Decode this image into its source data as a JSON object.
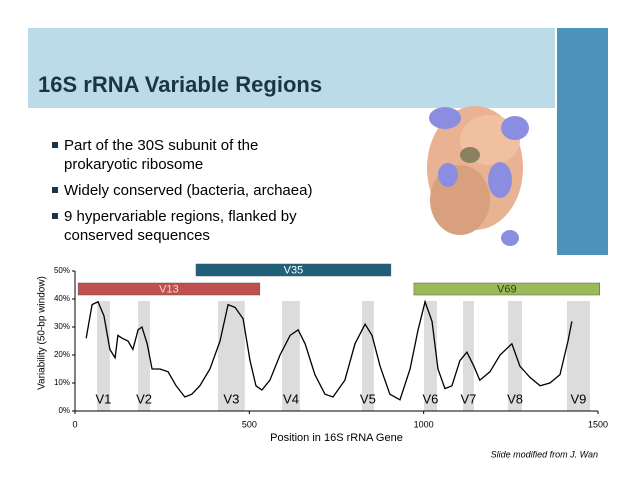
{
  "title": "16S rRNA Variable Regions",
  "bullets": [
    "Part of the 30S subunit of the prokaryotic ribosome",
    "Widely conserved (bacteria, archaea)",
    "9 hypervariable regions, flanked by conserved sequences"
  ],
  "credit": "Slide modified from J. Wan",
  "chart_data": {
    "type": "line",
    "xlabel": "Position in 16S rRNA Gene",
    "ylabel": "Variability (50-bp window)",
    "xlim": [
      0,
      1500
    ],
    "xticks": [
      0,
      500,
      1000,
      1500
    ],
    "ylim": [
      0,
      50
    ],
    "yticks": [
      {
        "value": 0,
        "label": "0%"
      },
      {
        "value": 10,
        "label": "10%"
      },
      {
        "value": 20,
        "label": "20%"
      },
      {
        "value": 30,
        "label": "30%"
      },
      {
        "value": 40,
        "label": "40%"
      },
      {
        "value": 50,
        "label": "50%"
      }
    ],
    "color": "#000000",
    "x": [
      32,
      49,
      66,
      83,
      100,
      115,
      123,
      135,
      152,
      166,
      181,
      192,
      207,
      221,
      244,
      267,
      290,
      315,
      335,
      358,
      387,
      416,
      439,
      459,
      482,
      502,
      519,
      536,
      559,
      588,
      617,
      640,
      660,
      688,
      717,
      740,
      774,
      803,
      832,
      852,
      875,
      903,
      932,
      961,
      984,
      1004,
      1024,
      1041,
      1061,
      1081,
      1104,
      1124,
      1144,
      1161,
      1190,
      1219,
      1253,
      1276,
      1305,
      1334,
      1362,
      1391,
      1414,
      1425
    ],
    "values": [
      26,
      38,
      39,
      34,
      22,
      19,
      27,
      26,
      25,
      22,
      29,
      30,
      24,
      15,
      15,
      14,
      9,
      5,
      6,
      9,
      15,
      25,
      38,
      37,
      33,
      18,
      9,
      7.5,
      11,
      20,
      27,
      29,
      24,
      13,
      6,
      5,
      11,
      24,
      31,
      27,
      16,
      6,
      4,
      15,
      29,
      39,
      32,
      15,
      8,
      9,
      18,
      21,
      16,
      11,
      14,
      20,
      24,
      16,
      12,
      9,
      10,
      13,
      25,
      32
    ],
    "regions": [
      {
        "name": "V1",
        "start": 63,
        "end": 100
      },
      {
        "name": "V2",
        "start": 181,
        "end": 215
      },
      {
        "name": "V3",
        "start": 410,
        "end": 487
      },
      {
        "name": "V4",
        "start": 594,
        "end": 645
      },
      {
        "name": "V5",
        "start": 823,
        "end": 857
      },
      {
        "name": "V6",
        "start": 1001,
        "end": 1038
      },
      {
        "name": "V7",
        "start": 1113,
        "end": 1144
      },
      {
        "name": "V8",
        "start": 1242,
        "end": 1282
      },
      {
        "name": "V9",
        "start": 1411,
        "end": 1477
      }
    ],
    "amplicons": [
      {
        "name": "V13",
        "start": 9,
        "end": 530,
        "color": "#c0504d"
      },
      {
        "name": "V35",
        "start": 347,
        "end": 906,
        "color": "#1f5f7a"
      },
      {
        "name": "V69",
        "start": 972,
        "end": 1505,
        "color": "#9bbb59"
      }
    ]
  }
}
